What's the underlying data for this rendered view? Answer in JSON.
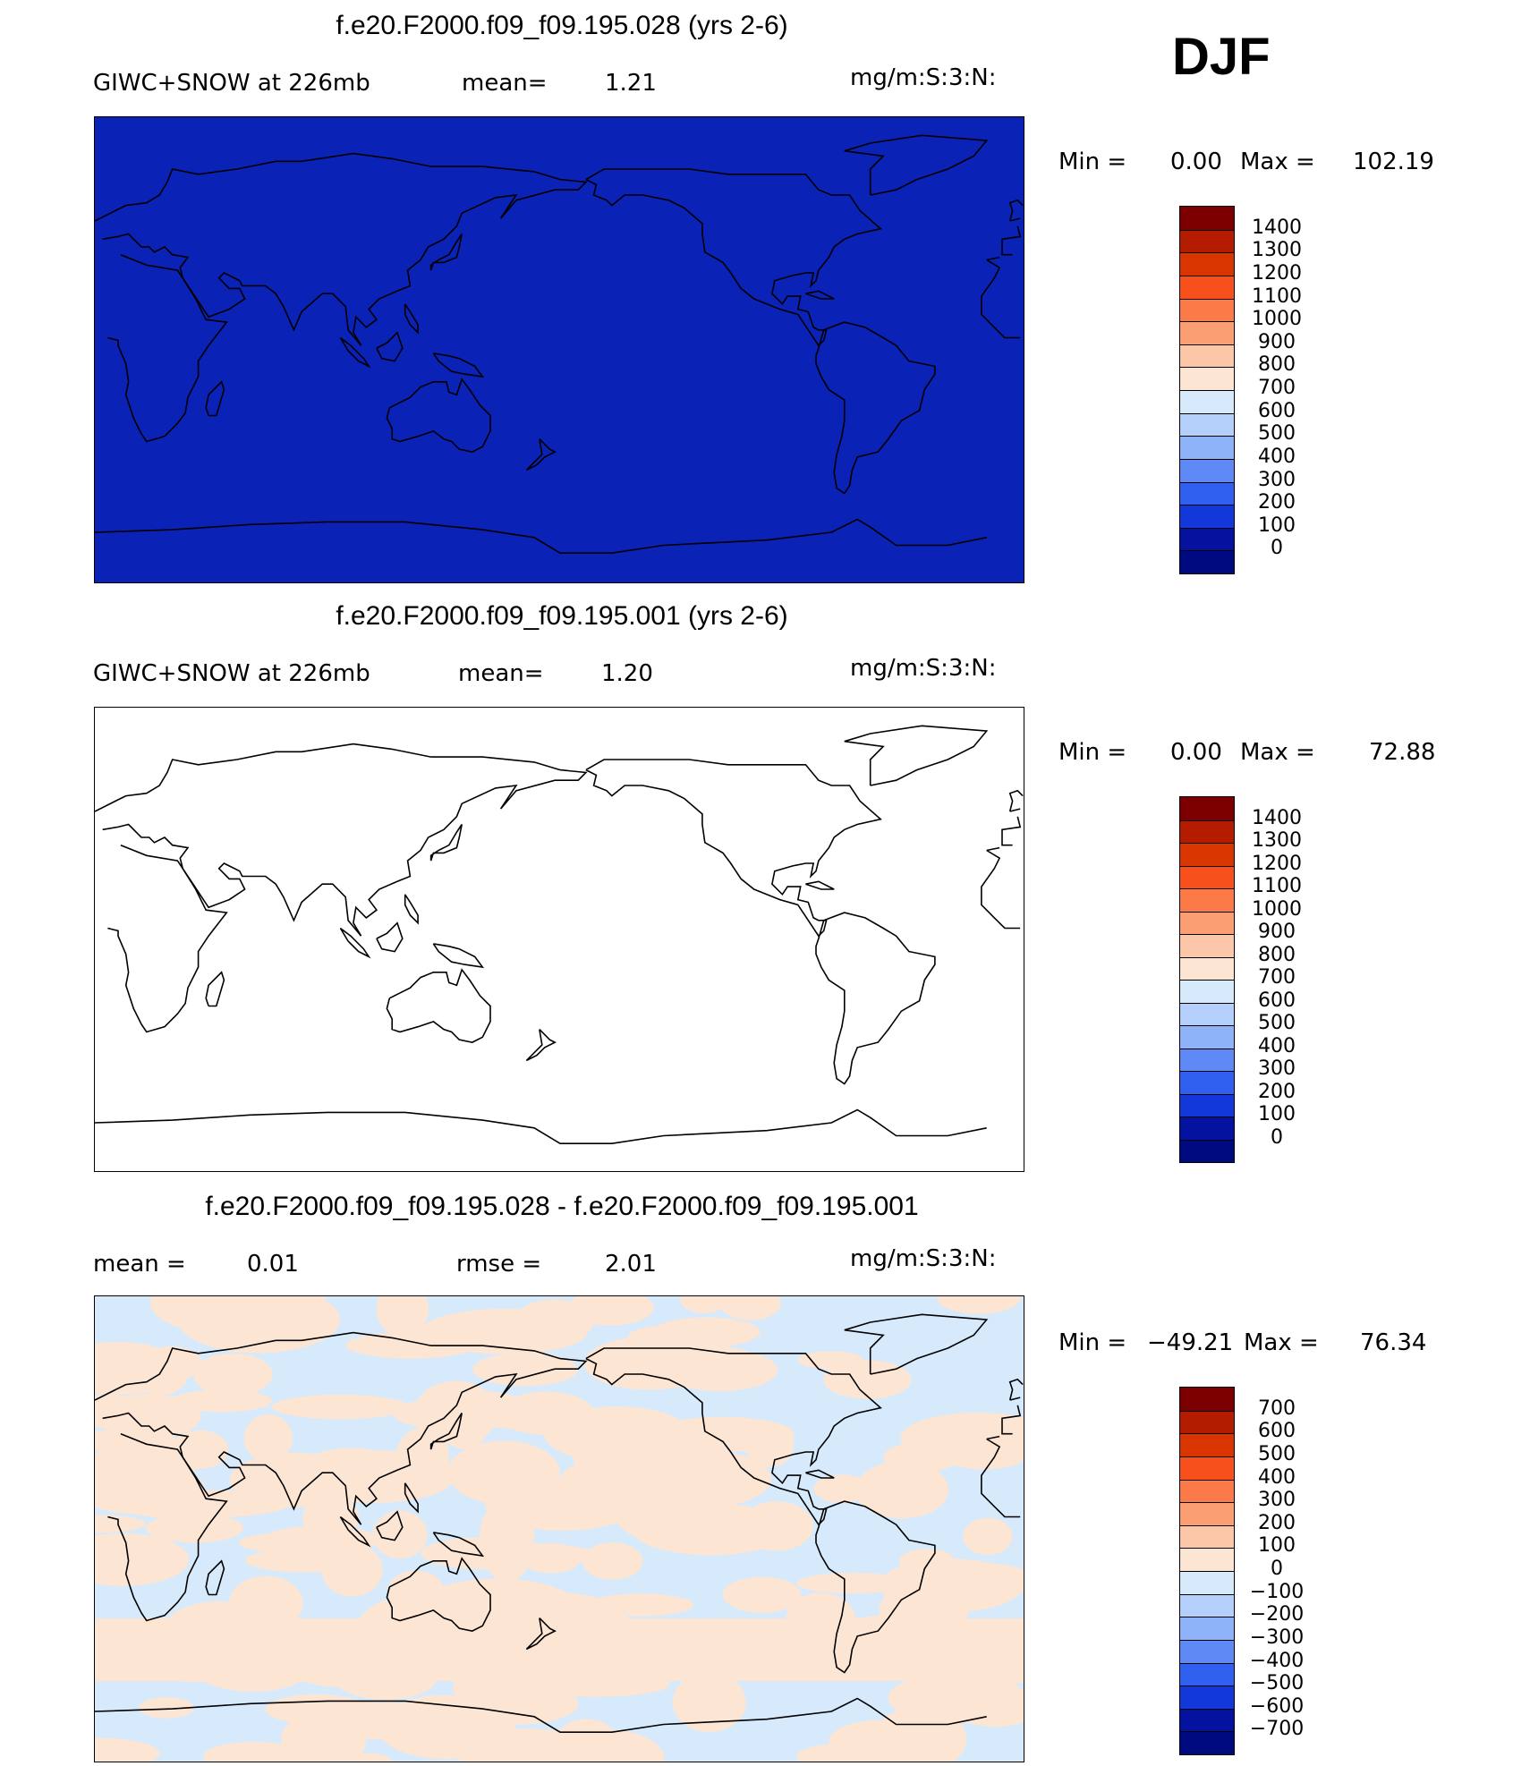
{
  "season": "DJF",
  "panels": [
    {
      "title": "f.e20.F2000.f09_f09.195.028 (yrs 2-6)",
      "left_label": "GIWC+SNOW at 226mb",
      "mean_label": "mean=",
      "mean_value": "1.21",
      "units": "mg/m:S:3:N:",
      "min_label": "Min =",
      "min_value": "0.00",
      "max_label": "Max =",
      "max_value": "102.19",
      "fill": "#0a22b5",
      "colorbar": {
        "labels": [
          "1400",
          "1300",
          "1200",
          "1100",
          "1000",
          "900",
          "800",
          "700",
          "600",
          "500",
          "400",
          "300",
          "200",
          "100",
          "0"
        ],
        "colors": [
          "#7d0000",
          "#b41c00",
          "#d93500",
          "#f7501c",
          "#fb7a48",
          "#fb9f72",
          "#fcc6a8",
          "#fde5d4",
          "#d7eafb",
          "#b4cffa",
          "#8fb3f8",
          "#5f8af5",
          "#2f60f0",
          "#1238d9",
          "#05119f",
          "#000a80"
        ]
      }
    },
    {
      "title": "f.e20.F2000.f09_f09.195.001 (yrs 2-6)",
      "left_label": "GIWC+SNOW at 226mb",
      "mean_label": "mean=",
      "mean_value": "1.20",
      "units": "mg/m:S:3:N:",
      "min_label": "Min =",
      "min_value": "0.00",
      "max_label": "Max =",
      "max_value": "72.88",
      "fill": "#ffffff",
      "colorbar": {
        "labels": [
          "1400",
          "1300",
          "1200",
          "1100",
          "1000",
          "900",
          "800",
          "700",
          "600",
          "500",
          "400",
          "300",
          "200",
          "100",
          "0"
        ],
        "colors": [
          "#7d0000",
          "#b41c00",
          "#d93500",
          "#f7501c",
          "#fb7a48",
          "#fb9f72",
          "#fcc6a8",
          "#fde5d4",
          "#d7eafb",
          "#b4cffa",
          "#8fb3f8",
          "#5f8af5",
          "#2f60f0",
          "#1238d9",
          "#05119f",
          "#000a80"
        ]
      }
    },
    {
      "title": "f.e20.F2000.f09_f09.195.028 - f.e20.F2000.f09_f09.195.001",
      "mean_label": "mean =",
      "mean_value": "0.01",
      "rmse_label": "rmse =",
      "rmse_value": "2.01",
      "units": "mg/m:S:3:N:",
      "min_label": "Min =",
      "min_value": "−49.21",
      "max_label": "Max =",
      "max_value": "76.34",
      "fill": "#d7eafb",
      "fill_alt": "#fde5d4",
      "colorbar": {
        "labels": [
          "700",
          "600",
          "500",
          "400",
          "300",
          "200",
          "100",
          "0",
          "−100",
          "−200",
          "−300",
          "−400",
          "−500",
          "−600",
          "−700"
        ],
        "colors": [
          "#7d0000",
          "#b41c00",
          "#d93500",
          "#f7501c",
          "#fb7a48",
          "#fb9f72",
          "#fcc6a8",
          "#fde5d4",
          "#d7eafb",
          "#b4cffa",
          "#8fb3f8",
          "#5f8af5",
          "#2f60f0",
          "#1238d9",
          "#05119f",
          "#000a80"
        ]
      }
    }
  ]
}
